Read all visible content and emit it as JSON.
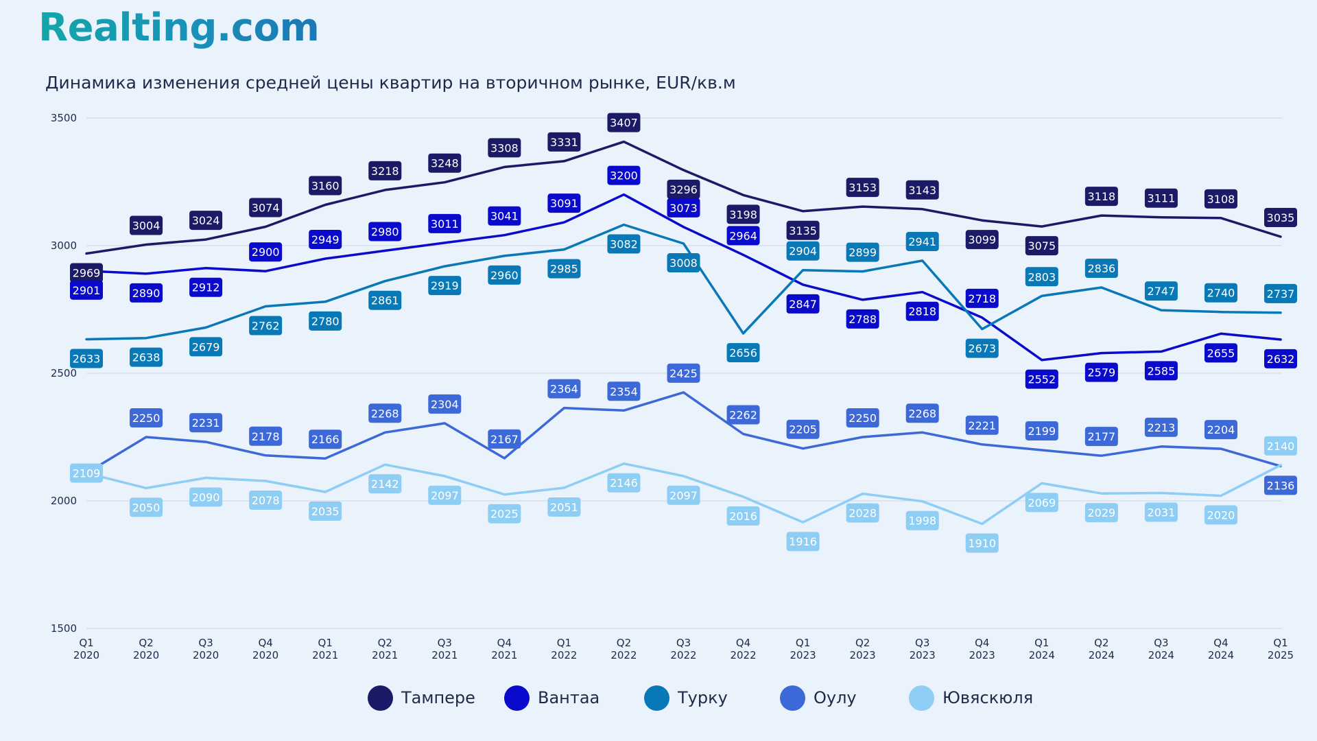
{
  "brand": {
    "logo_text": "Realting.com"
  },
  "chart_data": {
    "type": "line",
    "title": "Динамика изменения средней цены квартир на вторичном рынке, EUR/кв.м",
    "xlabel": "",
    "ylabel": "",
    "ylim": [
      1500,
      3500
    ],
    "yticks": [
      1500,
      2000,
      2500,
      3000,
      3500
    ],
    "grid": true,
    "legend_position": "bottom",
    "categories": [
      [
        "Q1",
        "2020"
      ],
      [
        "Q2",
        "2020"
      ],
      [
        "Q3",
        "2020"
      ],
      [
        "Q4",
        "2020"
      ],
      [
        "Q1",
        "2021"
      ],
      [
        "Q2",
        "2021"
      ],
      [
        "Q3",
        "2021"
      ],
      [
        "Q4",
        "2021"
      ],
      [
        "Q1",
        "2022"
      ],
      [
        "Q2",
        "2022"
      ],
      [
        "Q3",
        "2022"
      ],
      [
        "Q4",
        "2022"
      ],
      [
        "Q1",
        "2023"
      ],
      [
        "Q2",
        "2023"
      ],
      [
        "Q3",
        "2023"
      ],
      [
        "Q4",
        "2023"
      ],
      [
        "Q1",
        "2024"
      ],
      [
        "Q2",
        "2024"
      ],
      [
        "Q3",
        "2024"
      ],
      [
        "Q4",
        "2024"
      ],
      [
        "Q1",
        "2025"
      ]
    ],
    "series": [
      {
        "name": "Тампере",
        "color": "#1b1a66",
        "text_color": "#ffffff",
        "values": [
          2969,
          3004,
          3024,
          3074,
          3160,
          3218,
          3248,
          3308,
          3331,
          3407,
          3296,
          3198,
          3135,
          3153,
          3143,
          3099,
          3075,
          3118,
          3111,
          3108,
          3035
        ],
        "label_pos": [
          "below",
          "above",
          "above",
          "above",
          "above",
          "above",
          "above",
          "above",
          "above",
          "above",
          "below",
          "below",
          "below",
          "above",
          "above",
          "below",
          "below",
          "above",
          "above",
          "above",
          "above"
        ]
      },
      {
        "name": "Вантаа",
        "color": "#0a0acc",
        "text_color": "#ffffff",
        "values": [
          2901,
          2890,
          2912,
          2900,
          2949,
          2980,
          3011,
          3041,
          3091,
          3200,
          3073,
          2964,
          2847,
          2788,
          2818,
          2718,
          2552,
          2579,
          2585,
          2655,
          2632
        ],
        "label_pos": [
          "below",
          "below",
          "below",
          "above",
          "above",
          "above",
          "above",
          "above",
          "above",
          "above",
          "above",
          "above",
          "below",
          "below",
          "below",
          "above",
          "below",
          "below",
          "below",
          "below",
          "below"
        ]
      },
      {
        "name": "Турку",
        "color": "#0879b6",
        "text_color": "#ffffff",
        "values": [
          2633,
          2638,
          2679,
          2762,
          2780,
          2861,
          2919,
          2960,
          2985,
          3082,
          3008,
          2656,
          2904,
          2899,
          2941,
          2673,
          2803,
          2836,
          2747,
          2740,
          2737
        ],
        "label_pos": [
          "below",
          "below",
          "below",
          "below",
          "below",
          "below",
          "below",
          "below",
          "below",
          "below",
          "below",
          "below",
          "above",
          "above",
          "above",
          "below",
          "above",
          "above",
          "above",
          "above",
          "above"
        ]
      },
      {
        "name": "Оулу",
        "color": "#3d68d8",
        "text_color": "#ffffff",
        "values": [
          2109,
          2250,
          2231,
          2178,
          2166,
          2268,
          2304,
          2167,
          2364,
          2354,
          2425,
          2262,
          2205,
          2250,
          2268,
          2221,
          2199,
          2177,
          2213,
          2204,
          2136
        ],
        "label_pos": [
          "hidden",
          "above",
          "above",
          "above",
          "above",
          "above",
          "above",
          "above",
          "above",
          "above",
          "above",
          "above",
          "above",
          "above",
          "above",
          "above",
          "above",
          "above",
          "above",
          "above",
          "below"
        ]
      },
      {
        "name": "Ювяскюля",
        "color": "#8ecdf4",
        "text_color": "#ffffff",
        "values": [
          2109,
          2050,
          2090,
          2078,
          2035,
          2142,
          2097,
          2025,
          2051,
          2146,
          2097,
          2016,
          1916,
          2028,
          1998,
          1910,
          2069,
          2029,
          2031,
          2020,
          2140
        ],
        "label_pos": [
          "center",
          "below",
          "below",
          "below",
          "below",
          "below",
          "below",
          "below",
          "below",
          "below",
          "below",
          "below",
          "below",
          "below",
          "below",
          "below",
          "below",
          "below",
          "below",
          "below",
          "above"
        ]
      }
    ]
  }
}
